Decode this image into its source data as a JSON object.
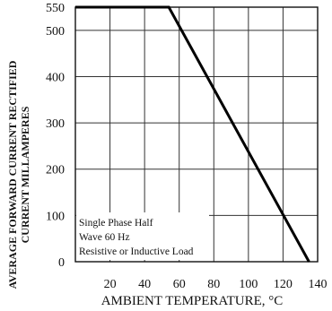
{
  "chart_data": {
    "type": "line",
    "title": "",
    "xlabel": "AMBIENT TEMPERATURE, °C",
    "ylabel_lines": [
      "AVERAGE FORWARD CURRENT RECTIFIED",
      "CURRENT MILLAMPERES"
    ],
    "xlim": [
      0,
      140
    ],
    "ylim": [
      0,
      550
    ],
    "x_ticks": [
      20,
      40,
      60,
      80,
      100,
      120,
      140
    ],
    "y_ticks": [
      0,
      100,
      200,
      300,
      400,
      500,
      550
    ],
    "grid": true,
    "legend": "none",
    "annotation_lines": [
      "Single Phase Half",
      "Wave 60 Hz",
      "Resistive or Inductive Load"
    ],
    "annotation_position": "bottom-left",
    "series": [
      {
        "x": [
          0,
          54,
          135
        ],
        "y": [
          550,
          550,
          0
        ]
      }
    ]
  }
}
